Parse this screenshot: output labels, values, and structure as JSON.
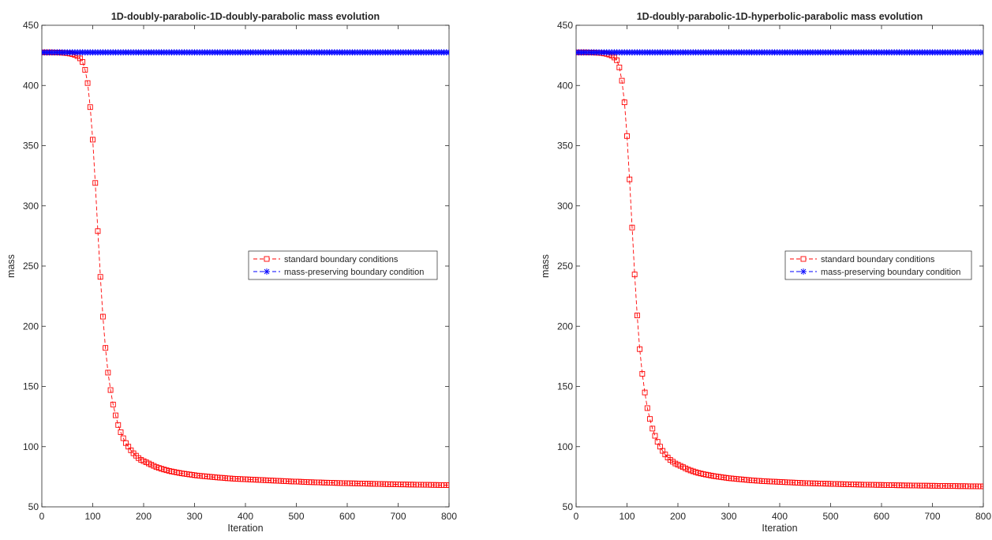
{
  "colors": {
    "standard": "#ff0000",
    "preserving": "#0000ff",
    "axis": "#262626",
    "background": "#ffffff"
  },
  "chart_data": [
    {
      "type": "line",
      "title": "1D-doubly-parabolic-1D-doubly-parabolic mass evolution",
      "xlabel": "Iteration",
      "ylabel": "mass",
      "xlim": [
        0,
        800
      ],
      "ylim": [
        50,
        450
      ],
      "xticks": [
        "0",
        "100",
        "200",
        "300",
        "400",
        "500",
        "600",
        "700",
        "800"
      ],
      "yticks": [
        "50",
        "100",
        "150",
        "200",
        "250",
        "300",
        "350",
        "400",
        "450"
      ],
      "grid": false,
      "legend_placement": "center-right",
      "series": [
        {
          "name": "standard boundary conditions",
          "color": "#ff0000",
          "line_style": "dashed",
          "marker": "square",
          "x": [
            0,
            5,
            10,
            15,
            20,
            25,
            30,
            35,
            40,
            45,
            50,
            55,
            60,
            65,
            70,
            75,
            80,
            85,
            90,
            95,
            100,
            105,
            110,
            115,
            120,
            125,
            130,
            135,
            140,
            145,
            150,
            155,
            160,
            165,
            170,
            175,
            180,
            185,
            190,
            195,
            200,
            205,
            210,
            215,
            220,
            225,
            230,
            235,
            240,
            245,
            250,
            255,
            260,
            265,
            270,
            275,
            280,
            285,
            290,
            295,
            300,
            305,
            310,
            315,
            320,
            325,
            330,
            335,
            340,
            345,
            350,
            355,
            360,
            365,
            370,
            375,
            380,
            385,
            390,
            395,
            400,
            405,
            410,
            415,
            420,
            425,
            430,
            435,
            440,
            445,
            450,
            455,
            460,
            465,
            470,
            475,
            480,
            485,
            490,
            495,
            500,
            505,
            510,
            515,
            520,
            525,
            530,
            535,
            540,
            545,
            550,
            555,
            560,
            565,
            570,
            575,
            580,
            585,
            590,
            595,
            600,
            605,
            610,
            615,
            620,
            625,
            630,
            635,
            640,
            645,
            650,
            655,
            660,
            665,
            670,
            675,
            680,
            685,
            690,
            695,
            700,
            705,
            710,
            715,
            720,
            725,
            730,
            735,
            740,
            745,
            750,
            755,
            760,
            765,
            770,
            775,
            780,
            785,
            790,
            795,
            800
          ],
          "y": [
            427.5,
            427.5,
            427.5,
            427.5,
            427.5,
            427.4,
            427.4,
            427.3,
            427.2,
            427.0,
            426.8,
            426.5,
            426.0,
            425.3,
            424.4,
            422.5,
            419.5,
            413,
            402,
            382,
            355,
            319,
            279,
            241,
            208,
            182,
            161.5,
            147,
            135,
            126,
            118,
            112,
            107,
            103,
            100,
            97,
            94.5,
            92.5,
            90.5,
            89,
            88,
            87,
            86,
            85,
            84,
            83,
            82.3,
            81.6,
            81,
            80.4,
            79.9,
            79.4,
            79,
            78.6,
            78.2,
            77.8,
            77.5,
            77.2,
            76.9,
            76.6,
            76.3,
            76,
            75.8,
            75.6,
            75.4,
            75.2,
            75,
            74.8,
            74.6,
            74.4,
            74.2,
            74.1,
            73.9,
            73.7,
            73.6,
            73.4,
            73.3,
            73.2,
            73.1,
            73,
            72.9,
            72.8,
            72.7,
            72.6,
            72.5,
            72.4,
            72.3,
            72.2,
            72.1,
            72,
            71.9,
            71.8,
            71.7,
            71.6,
            71.5,
            71.4,
            71.3,
            71.2,
            71.1,
            71,
            71,
            70.9,
            70.8,
            70.7,
            70.6,
            70.5,
            70.5,
            70.4,
            70.3,
            70.3,
            70.2,
            70.1,
            70.1,
            70,
            70,
            69.9,
            69.8,
            69.8,
            69.7,
            69.7,
            69.6,
            69.6,
            69.5,
            69.5,
            69.4,
            69.4,
            69.3,
            69.3,
            69.2,
            69.2,
            69.1,
            69.1,
            69.0,
            69.0,
            68.9,
            68.9,
            68.8,
            68.8,
            68.8,
            68.7,
            68.7,
            68.6,
            68.6,
            68.6,
            68.5,
            68.5,
            68.5,
            68.4,
            68.4,
            68.4,
            68.3,
            68.3,
            68.3,
            68.2,
            68.2,
            68.2,
            68.1,
            68.1,
            68.1,
            68.0,
            68.0
          ]
        },
        {
          "name": "mass-preserving boundary condition",
          "color": "#0000ff",
          "line_style": "dashed",
          "marker": "asterisk",
          "x_range": [
            0,
            800
          ],
          "x_step": 5,
          "constant_y": 427.5
        }
      ]
    },
    {
      "type": "line",
      "title": "1D-doubly-parabolic-1D-hyperbolic-parabolic mass evolution",
      "xlabel": "Iteration",
      "ylabel": "mass",
      "xlim": [
        0,
        800
      ],
      "ylim": [
        50,
        450
      ],
      "xticks": [
        "0",
        "100",
        "200",
        "300",
        "400",
        "500",
        "600",
        "700",
        "800"
      ],
      "yticks": [
        "50",
        "100",
        "150",
        "200",
        "250",
        "300",
        "350",
        "400",
        "450"
      ],
      "grid": false,
      "legend_placement": "center-right",
      "series": [
        {
          "name": "standard boundary conditions",
          "color": "#ff0000",
          "line_style": "dashed",
          "marker": "square",
          "x": [
            0,
            5,
            10,
            15,
            20,
            25,
            30,
            35,
            40,
            45,
            50,
            55,
            60,
            65,
            70,
            75,
            80,
            85,
            90,
            95,
            100,
            105,
            110,
            115,
            120,
            125,
            130,
            135,
            140,
            145,
            150,
            155,
            160,
            165,
            170,
            175,
            180,
            185,
            190,
            195,
            200,
            205,
            210,
            215,
            220,
            225,
            230,
            235,
            240,
            245,
            250,
            255,
            260,
            265,
            270,
            275,
            280,
            285,
            290,
            295,
            300,
            305,
            310,
            315,
            320,
            325,
            330,
            335,
            340,
            345,
            350,
            355,
            360,
            365,
            370,
            375,
            380,
            385,
            390,
            395,
            400,
            405,
            410,
            415,
            420,
            425,
            430,
            435,
            440,
            445,
            450,
            455,
            460,
            465,
            470,
            475,
            480,
            485,
            490,
            495,
            500,
            505,
            510,
            515,
            520,
            525,
            530,
            535,
            540,
            545,
            550,
            555,
            560,
            565,
            570,
            575,
            580,
            585,
            590,
            595,
            600,
            605,
            610,
            615,
            620,
            625,
            630,
            635,
            640,
            645,
            650,
            655,
            660,
            665,
            670,
            675,
            680,
            685,
            690,
            695,
            700,
            705,
            710,
            715,
            720,
            725,
            730,
            735,
            740,
            745,
            750,
            755,
            760,
            765,
            770,
            775,
            780,
            785,
            790,
            795,
            800
          ],
          "y": [
            427.5,
            427.5,
            427.5,
            427.5,
            427.5,
            427.4,
            427.4,
            427.3,
            427.2,
            427.1,
            426.9,
            426.6,
            426.2,
            425.6,
            424.8,
            423.2,
            421,
            415,
            404,
            386,
            358,
            322,
            282,
            243,
            209,
            181,
            160.5,
            145,
            132,
            123,
            115,
            109,
            104,
            100,
            96.5,
            93.5,
            91,
            89,
            87.5,
            86,
            85,
            84,
            83,
            82,
            81,
            80.2,
            79.5,
            78.8,
            78.2,
            77.7,
            77.2,
            76.8,
            76.4,
            76,
            75.6,
            75.3,
            75,
            74.7,
            74.4,
            74.1,
            73.8,
            73.6,
            73.4,
            73.2,
            73,
            72.8,
            72.6,
            72.4,
            72.2,
            72,
            71.9,
            71.7,
            71.6,
            71.4,
            71.3,
            71.2,
            71.1,
            71,
            70.9,
            70.8,
            70.7,
            70.6,
            70.5,
            70.4,
            70.3,
            70.2,
            70.1,
            70,
            69.9,
            69.8,
            69.7,
            69.7,
            69.6,
            69.5,
            69.5,
            69.4,
            69.3,
            69.3,
            69.2,
            69.2,
            69.1,
            69.0,
            69.0,
            68.9,
            68.9,
            68.8,
            68.8,
            68.7,
            68.7,
            68.6,
            68.6,
            68.5,
            68.5,
            68.4,
            68.4,
            68.4,
            68.3,
            68.3,
            68.2,
            68.2,
            68.2,
            68.1,
            68.1,
            68.1,
            68.0,
            68.0,
            67.9,
            67.9,
            67.9,
            67.8,
            67.8,
            67.8,
            67.7,
            67.7,
            67.7,
            67.6,
            67.6,
            67.6,
            67.6,
            67.5,
            67.5,
            67.5,
            67.4,
            67.4,
            67.4,
            67.4,
            67.3,
            67.3,
            67.3,
            67.3,
            67.2,
            67.2,
            67.2,
            67.2,
            67.1,
            67.1,
            67.1,
            67.1,
            67.0,
            67.0,
            67.0
          ]
        },
        {
          "name": "mass-preserving boundary condition",
          "color": "#0000ff",
          "line_style": "dashed",
          "marker": "asterisk",
          "x_range": [
            0,
            800
          ],
          "x_step": 5,
          "constant_y": 427.5
        }
      ]
    }
  ]
}
